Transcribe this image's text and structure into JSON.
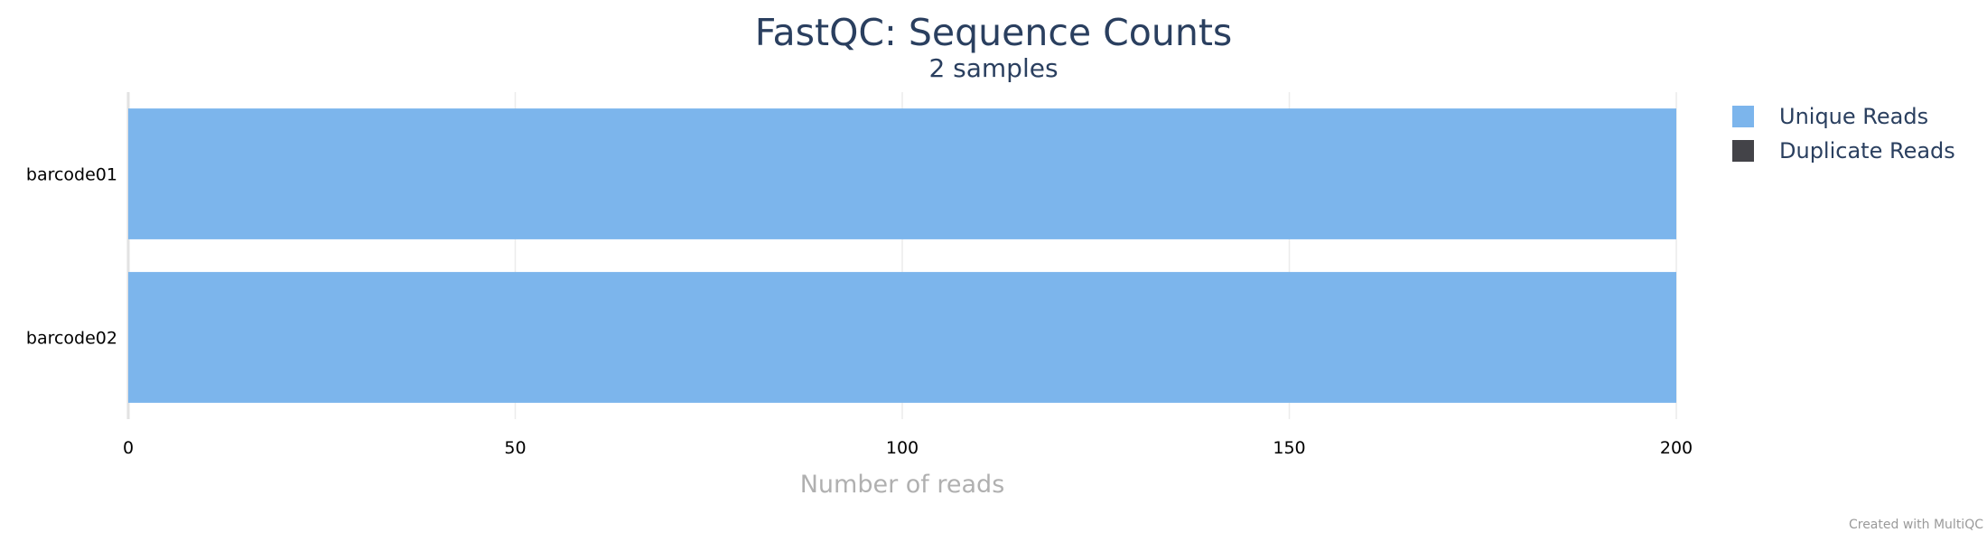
{
  "chart_data": {
    "type": "bar",
    "orientation": "horizontal",
    "stacked": true,
    "title": "FastQC: Sequence Counts",
    "subtitle": "2 samples",
    "xlabel": "Number of reads",
    "ylabel": "",
    "categories": [
      "barcode01",
      "barcode02"
    ],
    "series": [
      {
        "name": "Unique Reads",
        "values": [
          200,
          200
        ],
        "color": "#7cb5ec"
      },
      {
        "name": "Duplicate Reads",
        "values": [
          0,
          0
        ],
        "color": "#434348"
      }
    ],
    "xlim": [
      0,
      200
    ],
    "xticks": [
      0,
      50,
      100,
      150,
      200
    ],
    "grid": true,
    "legend_position": "top-right"
  },
  "credit": "Created with MultiQC"
}
